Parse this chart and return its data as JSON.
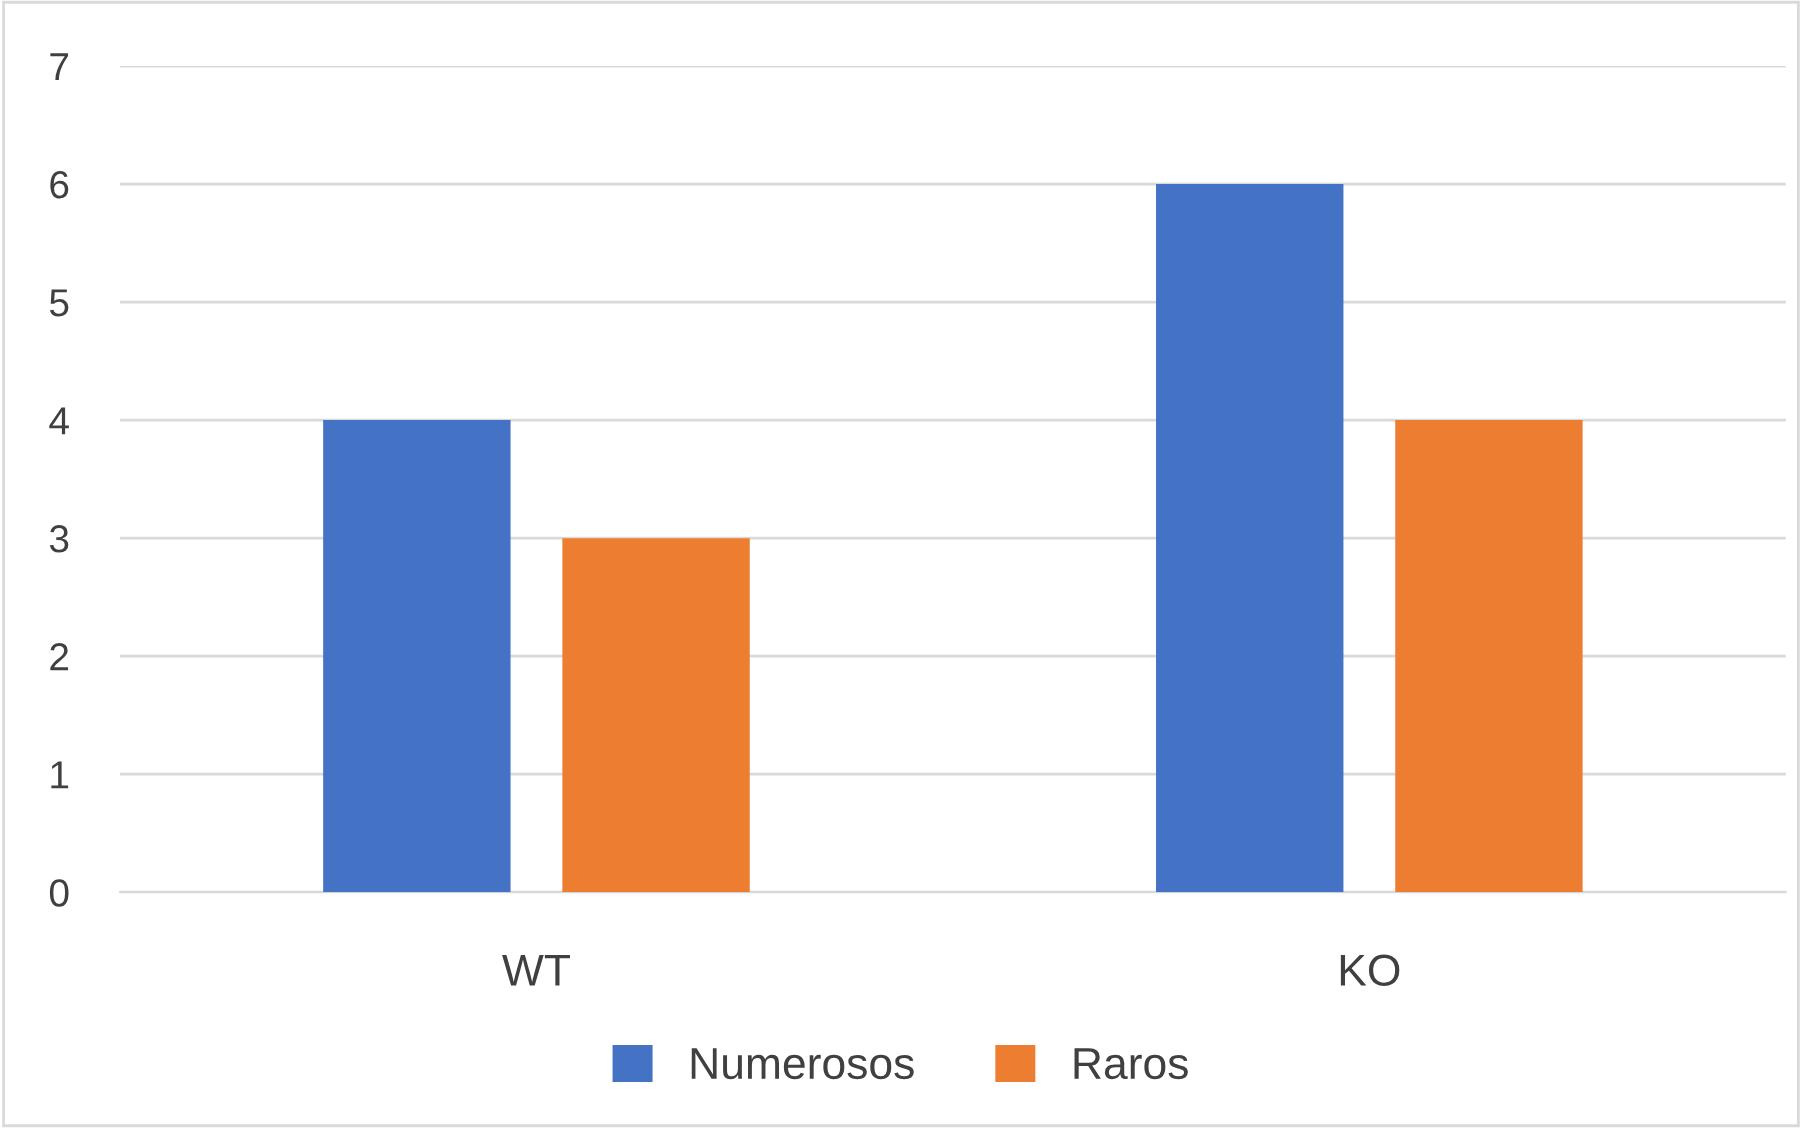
{
  "chart_data": {
    "type": "bar",
    "categories": [
      "WT",
      "KO"
    ],
    "series": [
      {
        "name": "Numerosos",
        "color": "#4472c4",
        "values": [
          4,
          6
        ]
      },
      {
        "name": "Raros",
        "color": "#ed7d31",
        "values": [
          3,
          4
        ]
      }
    ],
    "ylim": [
      0,
      7
    ],
    "yticks": [
      0,
      1,
      2,
      3,
      4,
      5,
      6,
      7
    ],
    "grid": "y",
    "legend": "bottom"
  }
}
